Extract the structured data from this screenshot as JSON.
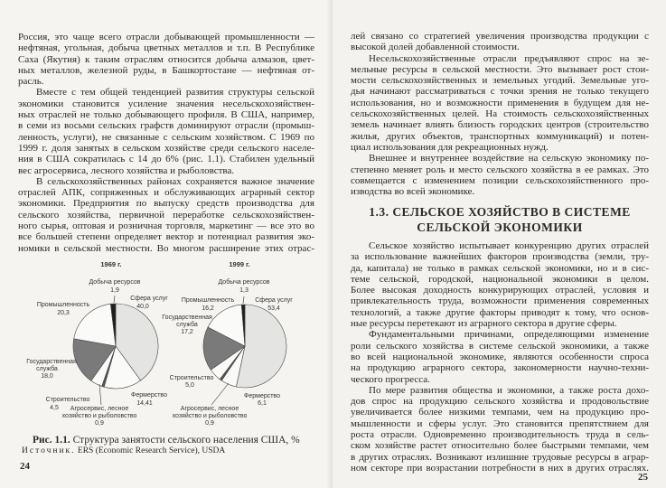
{
  "left_page": {
    "paragraphs": [
      {
        "indent": false,
        "lines": [
          "Россия, это чаще всего отрасли добывающей промышленности —",
          "нефтяная, угольная, добыча цветных металлов и т.п. В Республике",
          "Саха (Якутия) к таким отраслям относится добыча алмазов, цвет-",
          "ных металлов, железной руды, в Башкортостане — нефтяная от-",
          "расль."
        ]
      },
      {
        "indent": true,
        "lines": [
          "Вместе с тем общей тенденцией развития структуры сельской",
          "экономики становится усиление значения несельскохозяйствен-",
          "ных отраслей не только добывающего профиля. В США, например,",
          "в семи из восьми сельских графств доминируют отрасли (промыш-",
          "ленность, услуги), не связанные с сельским хозяйством. С 1969 по",
          "1999 г. доля занятых в сельском хозяйстве среди сельского населе-",
          "ния в США сократилась с 14 до 6% (рис. 1.1). Стабилен удельный",
          "вес агросервиса, лесного хозяйства и рыболовства."
        ]
      },
      {
        "indent": true,
        "continues": true,
        "lines": [
          "В сельскохозяйственных районах сохраняется важное значение",
          "отраслей АПК, сопряженных и обслуживающих аграрный сектор",
          "экономики. Предприятия по выпуску средств производства для",
          "сельского хозяйства, первичной переработке сельскохозяйствен-",
          "ного сырья, оптовая и розничная торговля, маркетинг — все это во",
          "все большей степени определяет вектор и потенциал развития эко-",
          "номики в сельской местности. Во многом расширение этих отрас-"
        ]
      }
    ],
    "figure": {
      "caption_label": "Рис. 1.1.",
      "caption_text": "Структура занятости сельского населения США, %",
      "source_label": "Источник.",
      "source_text": "ERS (Economic Research Service), USDA"
    },
    "page_number": "24"
  },
  "chart_data": [
    {
      "type": "pie",
      "title": "1969 г.",
      "categories": [
        "Сфера услуг",
        "Фермерство",
        "Агросервис, лесное хозяйство и рыболовство",
        "Строительство",
        "Государственная служба",
        "Промышленность",
        "Добыча ресурсов"
      ],
      "values": [
        40.0,
        14.41,
        0.9,
        4.5,
        18.0,
        20.3,
        1.9
      ],
      "value_labels": [
        "40,0",
        "14,41",
        "0,9",
        "4,5",
        "18,0",
        "20,3",
        "1,9"
      ],
      "colors": [
        "#e4e4e2",
        "#fafaf8",
        "#555555",
        "#fafaf8",
        "#7a7a7a",
        "#fafaf8",
        "#1e1e1e"
      ]
    },
    {
      "type": "pie",
      "title": "1999 г.",
      "categories": [
        "Сфера услуг",
        "Фермерство",
        "Агросервис, лесное хозяйство и рыболовство",
        "Строительство",
        "Государственная служба",
        "Промышленность",
        "Добыча ресурсов"
      ],
      "values": [
        53.4,
        6.1,
        0.9,
        5.0,
        17.2,
        16.2,
        1.3
      ],
      "value_labels": [
        "53,4",
        "6,1",
        "0,9",
        "5,0",
        "17,2",
        "16,2",
        "1,3"
      ],
      "colors": [
        "#e4e4e2",
        "#fafaf8",
        "#555555",
        "#fafaf8",
        "#7a7a7a",
        "#fafaf8",
        "#1e1e1e"
      ]
    }
  ],
  "chart_labels": {
    "services": "Сфера услуг",
    "farming": "Фермерство",
    "agro_1": "Агросервис, лесное",
    "agro_2": "хозяйство и рыболовство",
    "construction": "Строительство",
    "government_1": "Государственная",
    "government_2": "служба",
    "industry": "Промышленность",
    "mining": "Добыча ресурсов"
  },
  "right_page": {
    "paragraphs_top": [
      {
        "indent": false,
        "lines": [
          "лей связано со стратегией увеличения производства продукции с",
          "высокой долей добавленной стоимости."
        ]
      },
      {
        "indent": true,
        "lines": [
          "Несельскохозяйственные отрасли предъявляют спрос на зе-",
          "мельные ресурсы в сельской местности. Это вызывает рост стои-",
          "мости сельскохозяйственных и земельных угодий. Земельные уго-",
          "дья начинают рассматриваться с точки зрения не только текущего",
          "использования, но и возможности применения в будущем для не-",
          "сельскохозяйственных целей. На стоимость сельскохозяйственных",
          "земель начинает влиять близость городских центров (строительство",
          "жилья, других объектов, транспортных коммуникаций) и потен-",
          "циал использования для рекреационных нужд."
        ]
      },
      {
        "indent": true,
        "lines": [
          "Внешнее и внутреннее воздействие на сельскую экономику по-",
          "степенно меняет роль и место сельского хозяйства в ее рамках. Это",
          "совмещается с изменением позиции сельскохозяйственного про-",
          "изводства во всей экономике."
        ]
      }
    ],
    "section_heading": [
      "1.3. СЕЛЬСКОЕ ХОЗЯЙСТВО В СИСТЕМЕ",
      "СЕЛЬСКОЙ ЭКОНОМИКИ"
    ],
    "paragraphs_bottom": [
      {
        "indent": true,
        "lines": [
          "Сельское хозяйство испытывает конкуренцию других отраслей",
          "за использование важнейших факторов производства (земли, тру-",
          "да, капитала) не только в рамках сельской экономики, но и в сис-",
          "теме сельской, городской, национальной экономики в целом.",
          "Более высокая доходность конкурирующих отраслей, условия и",
          "привлекательность труда, возможности применения современных",
          "технологий, а также другие факторы приводят к тому, что основ-",
          "ные ресурсы перетекают из аграрного сектора в другие сферы."
        ]
      },
      {
        "indent": true,
        "lines": [
          "Фундаментальными причинами, определяющими изменение",
          "роли сельского хозяйства в системе сельской экономики, а также",
          "во всей национальной экономике, являются особенности спроса",
          "на продукцию аграрного сектора, закономерности научно-техни-",
          "ческого прогресса."
        ]
      },
      {
        "indent": true,
        "continues": true,
        "lines": [
          "По мере развития общества и экономики, а также роста дохо-",
          "дов спрос на продукцию сельского хозяйства и продовольствие",
          "увеличивается более низкими темпами, чем на продукцию про-",
          "мышленности и сферы услуг. Это становится препятствием для",
          "роста отрасли. Одновременно производительность труда в сель-",
          "ском хозяйстве растет относительно более быстрыми темпами, чем",
          "в других отраслях. Возникают излишние трудовые ресурсы в аграр-",
          "ном секторе при возрастании потребности в них в других отраслях."
        ]
      }
    ],
    "page_number": "25"
  }
}
